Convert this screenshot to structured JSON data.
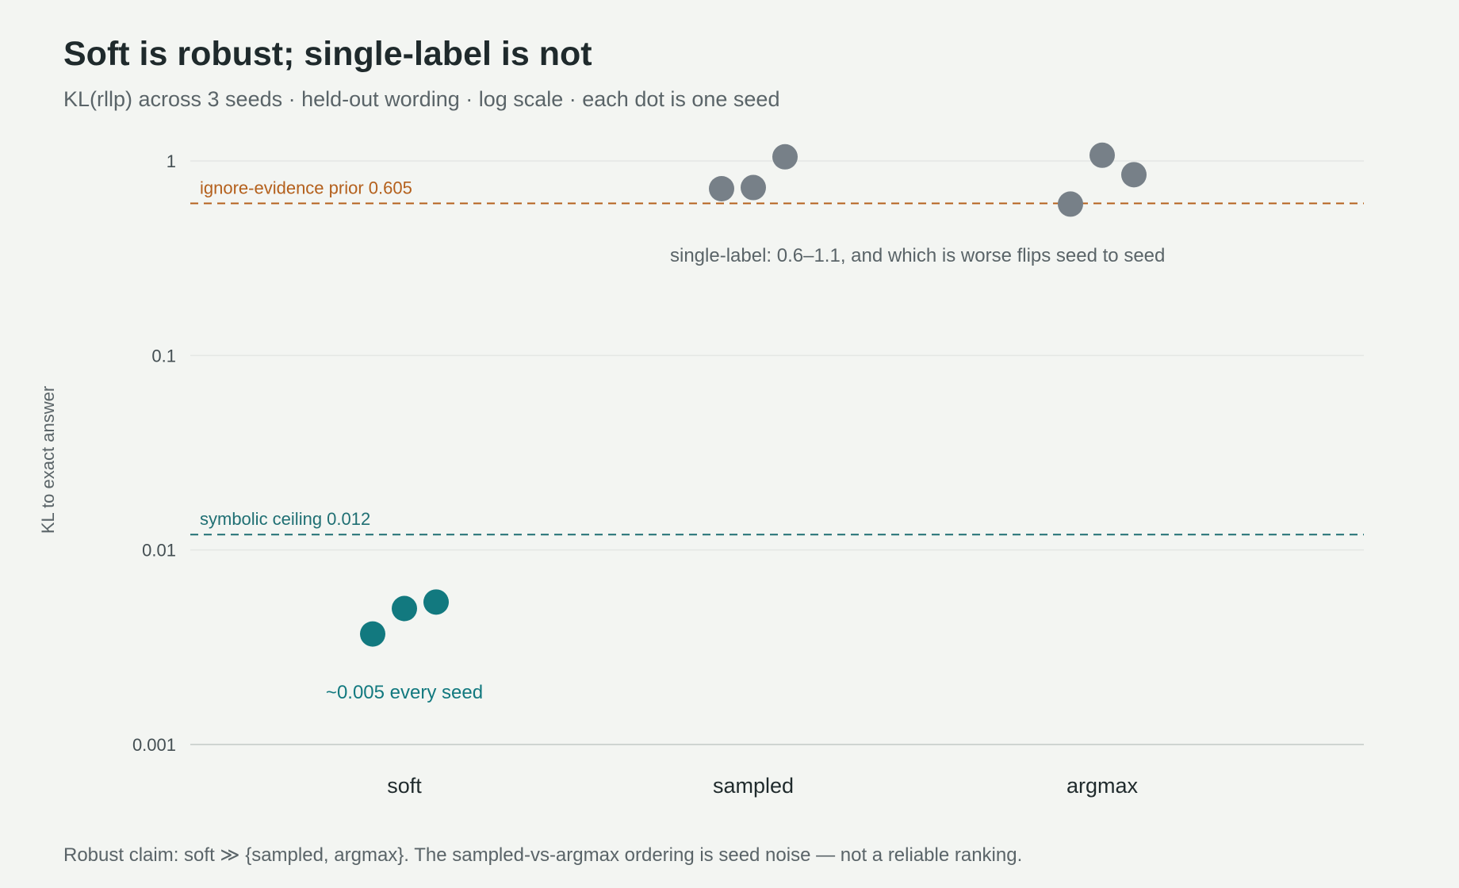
{
  "title": "Soft is robust; single-label is not",
  "subtitle": "KL(rllp) across 3 seeds · held-out wording · log scale · each dot is one seed",
  "footnote": "Robust claim: soft ≫ {sampled, argmax}. The sampled-vs-argmax ordering is seed noise — not a reliable ranking.",
  "colors": {
    "background": "#f3f5f2",
    "soft": "#12797f",
    "single_label": "#778088",
    "prior_line": "#b4601c",
    "ceiling_line": "#1f6f73",
    "grid": "#e4e7e4",
    "muted_text": "#5a6468"
  },
  "chart_data": {
    "type": "scatter",
    "title": "Soft is robust; single-label is not",
    "ylabel": "KL to exact answer",
    "xlabel": "",
    "yscale": "log",
    "ylim": [
      0.001,
      1
    ],
    "yticks": [
      {
        "value": 0.001,
        "label": "0.001"
      },
      {
        "value": 0.01,
        "label": "0.01"
      },
      {
        "value": 0.1,
        "label": "0.1"
      },
      {
        "value": 1,
        "label": "1"
      }
    ],
    "grid": true,
    "categories": [
      "soft",
      "sampled",
      "argmax"
    ],
    "series": [
      {
        "category": "soft",
        "values": [
          0.0037,
          0.005,
          0.0054
        ]
      },
      {
        "category": "sampled",
        "values": [
          0.72,
          0.73,
          1.05
        ]
      },
      {
        "category": "argmax",
        "values": [
          0.6,
          1.07,
          0.85
        ]
      }
    ],
    "reference_lines": [
      {
        "value": 0.605,
        "label": "ignore-evidence prior 0.605"
      },
      {
        "value": 0.012,
        "label": "symbolic ceiling 0.012"
      }
    ],
    "annotations": [
      {
        "text": "single-label: 0.6–1.1, and which is worse flips seed to seed"
      },
      {
        "text": "~0.005 every seed"
      }
    ]
  }
}
